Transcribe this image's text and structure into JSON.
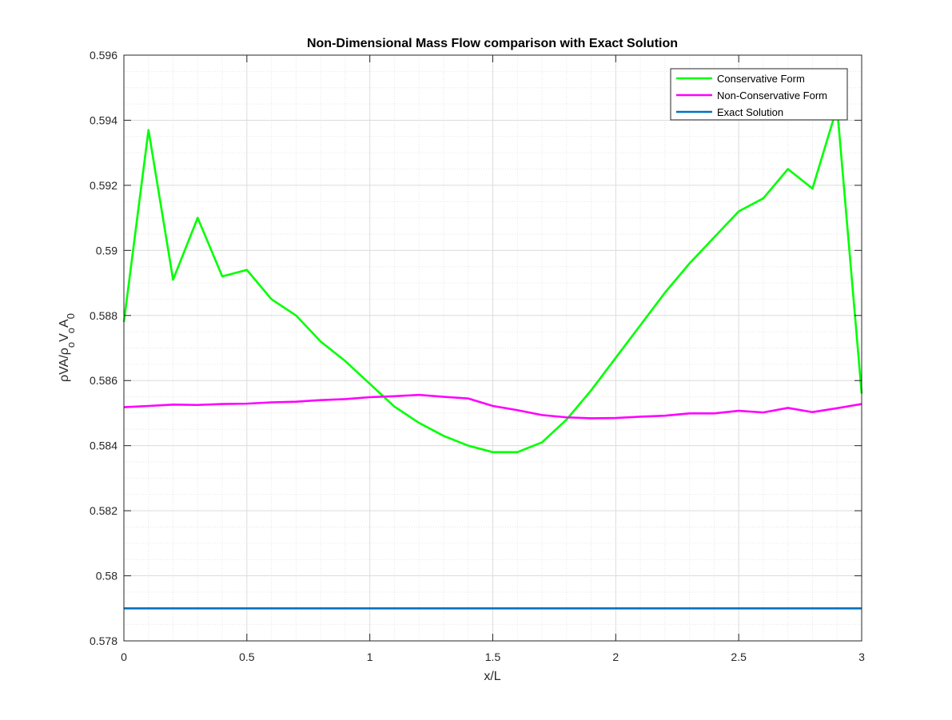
{
  "chart_data": {
    "type": "line",
    "title": "Non-Dimensional Mass Flow comparison with Exact Solution",
    "xlabel": "x/L",
    "ylabel": {
      "segments": [
        {
          "text": "ρ",
          "sub": false
        },
        {
          "text": "VA/",
          "sub": false
        },
        {
          "text": "ρ",
          "sub": false
        },
        {
          "text": "o",
          "sub": true
        },
        {
          "text": "V",
          "sub": false
        },
        {
          "text": "o",
          "sub": true
        },
        {
          "text": "A",
          "sub": false
        },
        {
          "text": "0",
          "sub": true
        }
      ]
    },
    "xlim": [
      0,
      3
    ],
    "ylim": [
      0.578,
      0.596
    ],
    "xticks": [
      0,
      0.5,
      1,
      1.5,
      2,
      2.5,
      3
    ],
    "xtick_labels": [
      "0",
      "0.5",
      "1",
      "1.5",
      "2",
      "2.5",
      "3"
    ],
    "yticks": [
      0.578,
      0.58,
      0.582,
      0.584,
      0.586,
      0.588,
      0.59,
      0.592,
      0.594,
      0.596
    ],
    "ytick_labels": [
      "0.578",
      "0.58",
      "0.582",
      "0.584",
      "0.586",
      "0.588",
      "0.59",
      "0.592",
      "0.594",
      "0.596"
    ],
    "grid": true,
    "minor_grid": true,
    "legend_position": "top-right",
    "series": [
      {
        "name": "Conservative Form",
        "color": "#00ff00",
        "x": [
          0,
          0.1,
          0.2,
          0.3,
          0.4,
          0.5,
          0.6,
          0.7,
          0.8,
          0.9,
          1.0,
          1.1,
          1.2,
          1.3,
          1.4,
          1.5,
          1.6,
          1.7,
          1.8,
          1.9,
          2.0,
          2.1,
          2.2,
          2.3,
          2.4,
          2.5,
          2.6,
          2.7,
          2.8,
          2.9,
          3.0
        ],
        "y": [
          0.5878,
          0.5937,
          0.5891,
          0.591,
          0.5892,
          0.5894,
          0.5885,
          0.588,
          0.5872,
          0.5866,
          0.5859,
          0.5852,
          0.5847,
          0.5843,
          0.584,
          0.5838,
          0.5838,
          0.5841,
          0.5848,
          0.5857,
          0.5867,
          0.5877,
          0.5887,
          0.5896,
          0.5904,
          0.5912,
          0.5916,
          0.5925,
          0.5919,
          0.5944,
          0.5856
        ]
      },
      {
        "name": "Non-Conservative Form",
        "color": "#ff00ff",
        "x": [
          0,
          0.1,
          0.2,
          0.3,
          0.4,
          0.5,
          0.6,
          0.7,
          0.8,
          0.9,
          1.0,
          1.1,
          1.2,
          1.3,
          1.4,
          1.5,
          1.6,
          1.7,
          1.8,
          1.9,
          2.0,
          2.1,
          2.2,
          2.3,
          2.4,
          2.5,
          2.6,
          2.7,
          2.8,
          2.9,
          3.0
        ],
        "y": [
          0.58518,
          0.58522,
          0.58526,
          0.58525,
          0.58528,
          0.58529,
          0.58533,
          0.58535,
          0.5854,
          0.58543,
          0.58549,
          0.58552,
          0.58556,
          0.5855,
          0.58545,
          0.58522,
          0.58509,
          0.58494,
          0.58487,
          0.58484,
          0.58485,
          0.58489,
          0.58492,
          0.58499,
          0.58499,
          0.58507,
          0.58502,
          0.58516,
          0.58503,
          0.58515,
          0.58528
        ]
      },
      {
        "name": "Exact Solution",
        "color": "#0072bd",
        "x": [
          0,
          3
        ],
        "y": [
          0.579,
          0.579
        ]
      }
    ]
  }
}
